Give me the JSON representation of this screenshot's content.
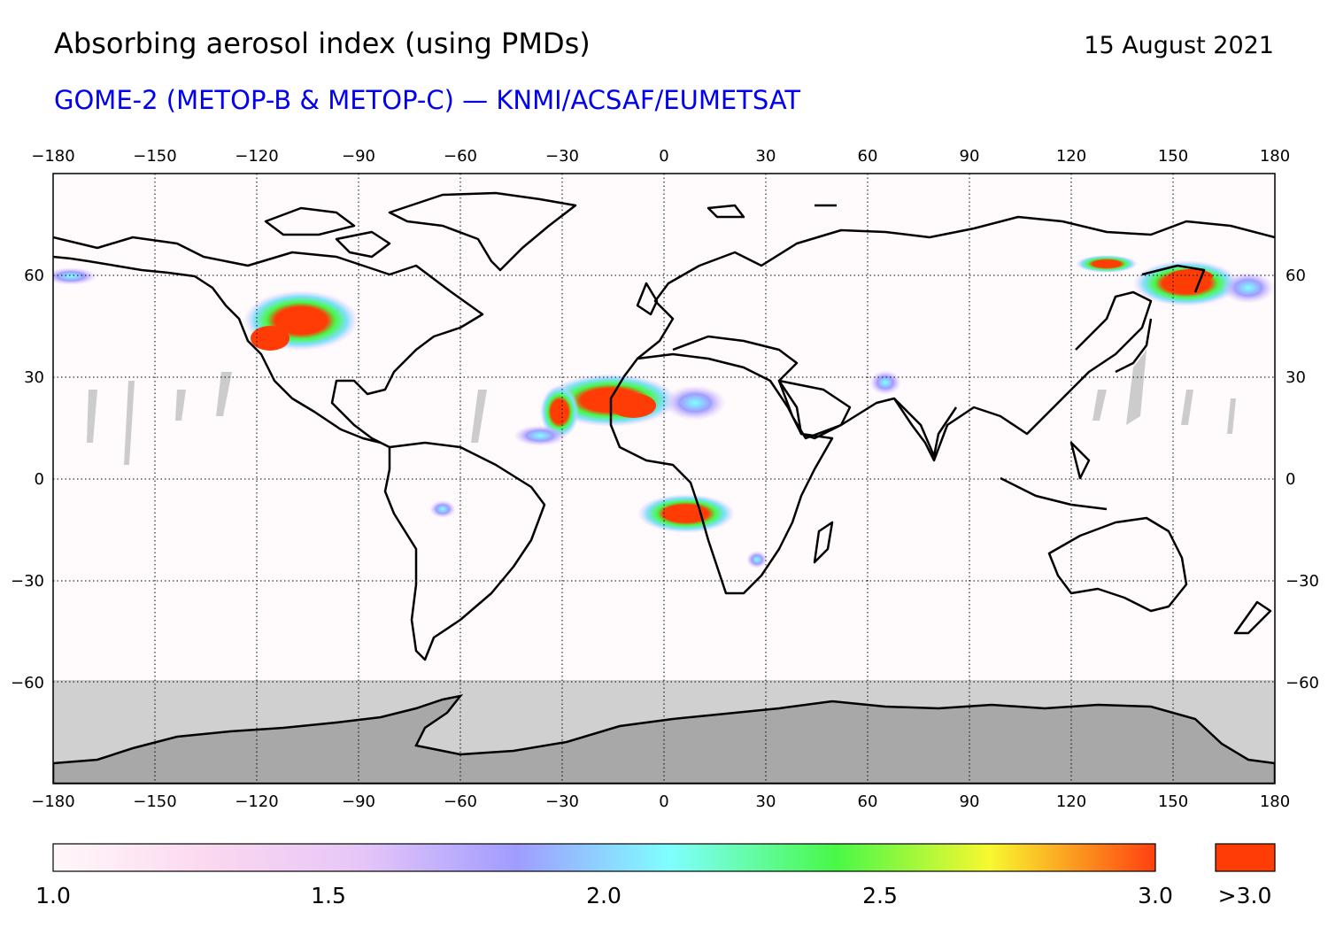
{
  "title": "Absorbing aerosol index (using PMDs)",
  "date": "15 August 2021",
  "subtitle": "GOME-2 (METOP-B & METOP-C) — KNMI/ACSAF/EUMETSAT",
  "axes": {
    "lon_ticks": [
      "−180",
      "−150",
      "−120",
      "−90",
      "−60",
      "−30",
      "0",
      "30",
      "60",
      "90",
      "120",
      "150",
      "180"
    ],
    "lat_ticks": [
      "60",
      "30",
      "0",
      "−30",
      "−60"
    ]
  },
  "colorbar": {
    "range": [
      1.0,
      3.0
    ],
    "labels": [
      "1.0",
      "1.5",
      "2.0",
      "2.5",
      "3.0"
    ],
    "overflow_label": ">3.0",
    "stops": [
      "#fff8fa",
      "#fbd8ef",
      "#e6c6f8",
      "#a09cff",
      "#7fffff",
      "#48f848",
      "#f8f830",
      "#ff4010"
    ],
    "overflow_color": "#ff3c06"
  },
  "colors": {
    "no_data": "#d0d0d0",
    "antarctica": "#a8a8a8",
    "high_aerosol": "#ff3c06"
  }
}
